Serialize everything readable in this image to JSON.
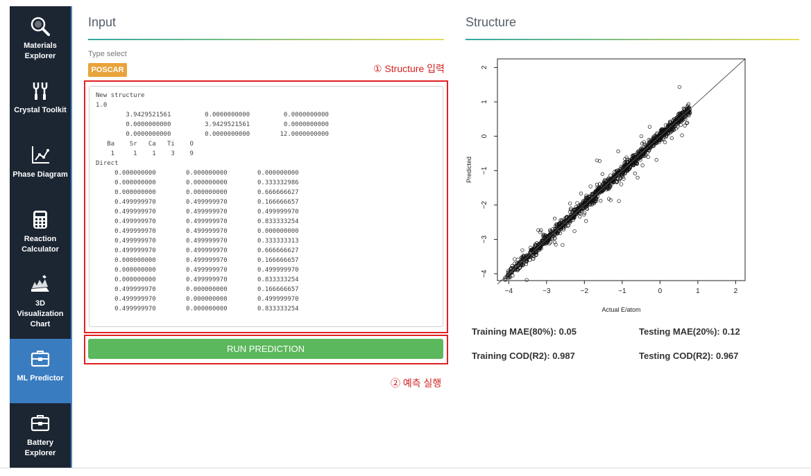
{
  "sidebar": {
    "items": [
      {
        "label": "Materials Explorer",
        "icon": "magnifier-icon"
      },
      {
        "label": "Crystal Toolkit",
        "icon": "wrench-icon"
      },
      {
        "label": "Phase Diagram",
        "icon": "phase-diagram-icon"
      },
      {
        "label": "Reaction Calculator",
        "icon": "calculator-icon"
      },
      {
        "label": "3D Visualization Chart",
        "icon": "chart-3d-icon"
      },
      {
        "label": "ML Predictor",
        "icon": "toolbox-icon"
      },
      {
        "label": "Battery Explorer",
        "icon": "toolbox-icon"
      }
    ],
    "active": "ML Predictor"
  },
  "input": {
    "title": "Input",
    "type_select_label": "Type select",
    "type_value": "POSCAR",
    "annotation_structure": "① Structure 입력",
    "annotation_run": "② 예측 실행",
    "run_button": "RUN PREDICTION",
    "poscar_text": "New structure\n1.0\n        3.9429521561         0.0000000000         0.0000000000\n        0.0000000000         3.9429521561         0.0000000000\n        0.0000000000         0.0000000000        12.0000000000\n   Ba    Sr   Ca   Ti    O\n    1     1    1    3    9\nDirect\n     0.000000000        0.000000000        0.000000000\n     0.000000000        0.000000000        0.333332986\n     0.000000000        0.000000000        0.666666627\n     0.499999970        0.499999970        0.166666657\n     0.499999970        0.499999970        0.499999970\n     0.499999970        0.499999970        0.833333254\n     0.499999970        0.499999970        0.000000000\n     0.499999970        0.499999970        0.333333313\n     0.499999970        0.499999970        0.666666627\n     0.000000000        0.499999970        0.166666657\n     0.000000000        0.499999970        0.499999970\n     0.000000000        0.499999970        0.833333254\n     0.499999970        0.000000000        0.166666657\n     0.499999970        0.000000000        0.499999970\n     0.499999970        0.000000000        0.833333254"
  },
  "structure": {
    "title": "Structure",
    "plot": {
      "xlabel": "Actual E/atom",
      "ylabel": "Predicted",
      "xlim": [
        -4.3,
        2.25
      ],
      "ylim": [
        -4.2,
        2.25
      ],
      "xticks": [
        "−4",
        "−3",
        "−2",
        "−1",
        "0",
        "1",
        "2"
      ],
      "yticks": [
        "2",
        "1",
        "0",
        "−1",
        "−2",
        "−3",
        "−4"
      ]
    },
    "metrics": {
      "train_mae": "Training MAE(80%): 0.05",
      "test_mae": "Testing MAE(20%): 0.12",
      "train_cod": "Training COD(R2): 0.987",
      "test_cod": "Testing COD(R2): 0.967"
    }
  },
  "colors": {
    "sidebar_bg": "#1c2532",
    "sidebar_active": "#3a7cc0",
    "poscar_badge": "#e8a33b",
    "run_button": "#5cb85c",
    "annotation": "#d31f1f"
  }
}
